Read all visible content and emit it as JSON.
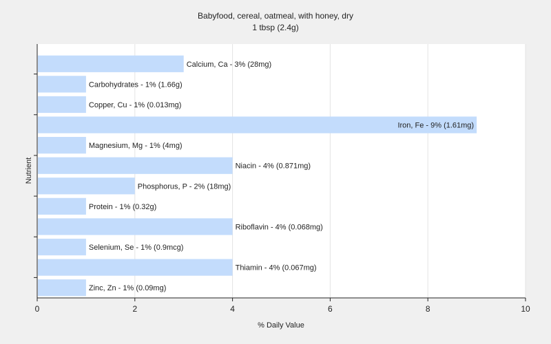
{
  "chart_data": {
    "type": "bar",
    "orientation": "horizontal",
    "title": "Babyfood, cereal, oatmeal, with honey, dry",
    "subtitle": "1 tbsp (2.4g)",
    "xlabel": "% Daily Value",
    "ylabel": "Nutrient",
    "xlim": [
      0,
      10
    ],
    "xticks": [
      "0",
      "2",
      "4",
      "6",
      "8",
      "10"
    ],
    "grid": true,
    "bar_color": "#c3dcfc",
    "categories": [
      "Calcium, Ca",
      "Carbohydrates",
      "Copper, Cu",
      "Iron, Fe",
      "Magnesium, Mg",
      "Niacin",
      "Phosphorus, P",
      "Protein",
      "Riboflavin",
      "Selenium, Se",
      "Thiamin",
      "Zinc, Zn"
    ],
    "values": [
      3,
      1,
      1,
      9,
      1,
      4,
      2,
      1,
      4,
      1,
      4,
      1
    ],
    "labels": [
      "Calcium, Ca - 3% (28mg)",
      "Carbohydrates - 1% (1.66g)",
      "Copper, Cu - 1% (0.013mg)",
      "Iron, Fe - 9% (1.61mg)",
      "Magnesium, Mg - 1% (4mg)",
      "Niacin - 4% (0.871mg)",
      "Phosphorus, P - 2% (18mg)",
      "Protein - 1% (0.32g)",
      "Riboflavin - 4% (0.068mg)",
      "Selenium, Se - 1% (0.9mcg)",
      "Thiamin - 4% (0.067mg)",
      "Zinc, Zn - 1% (0.09mg)"
    ]
  }
}
